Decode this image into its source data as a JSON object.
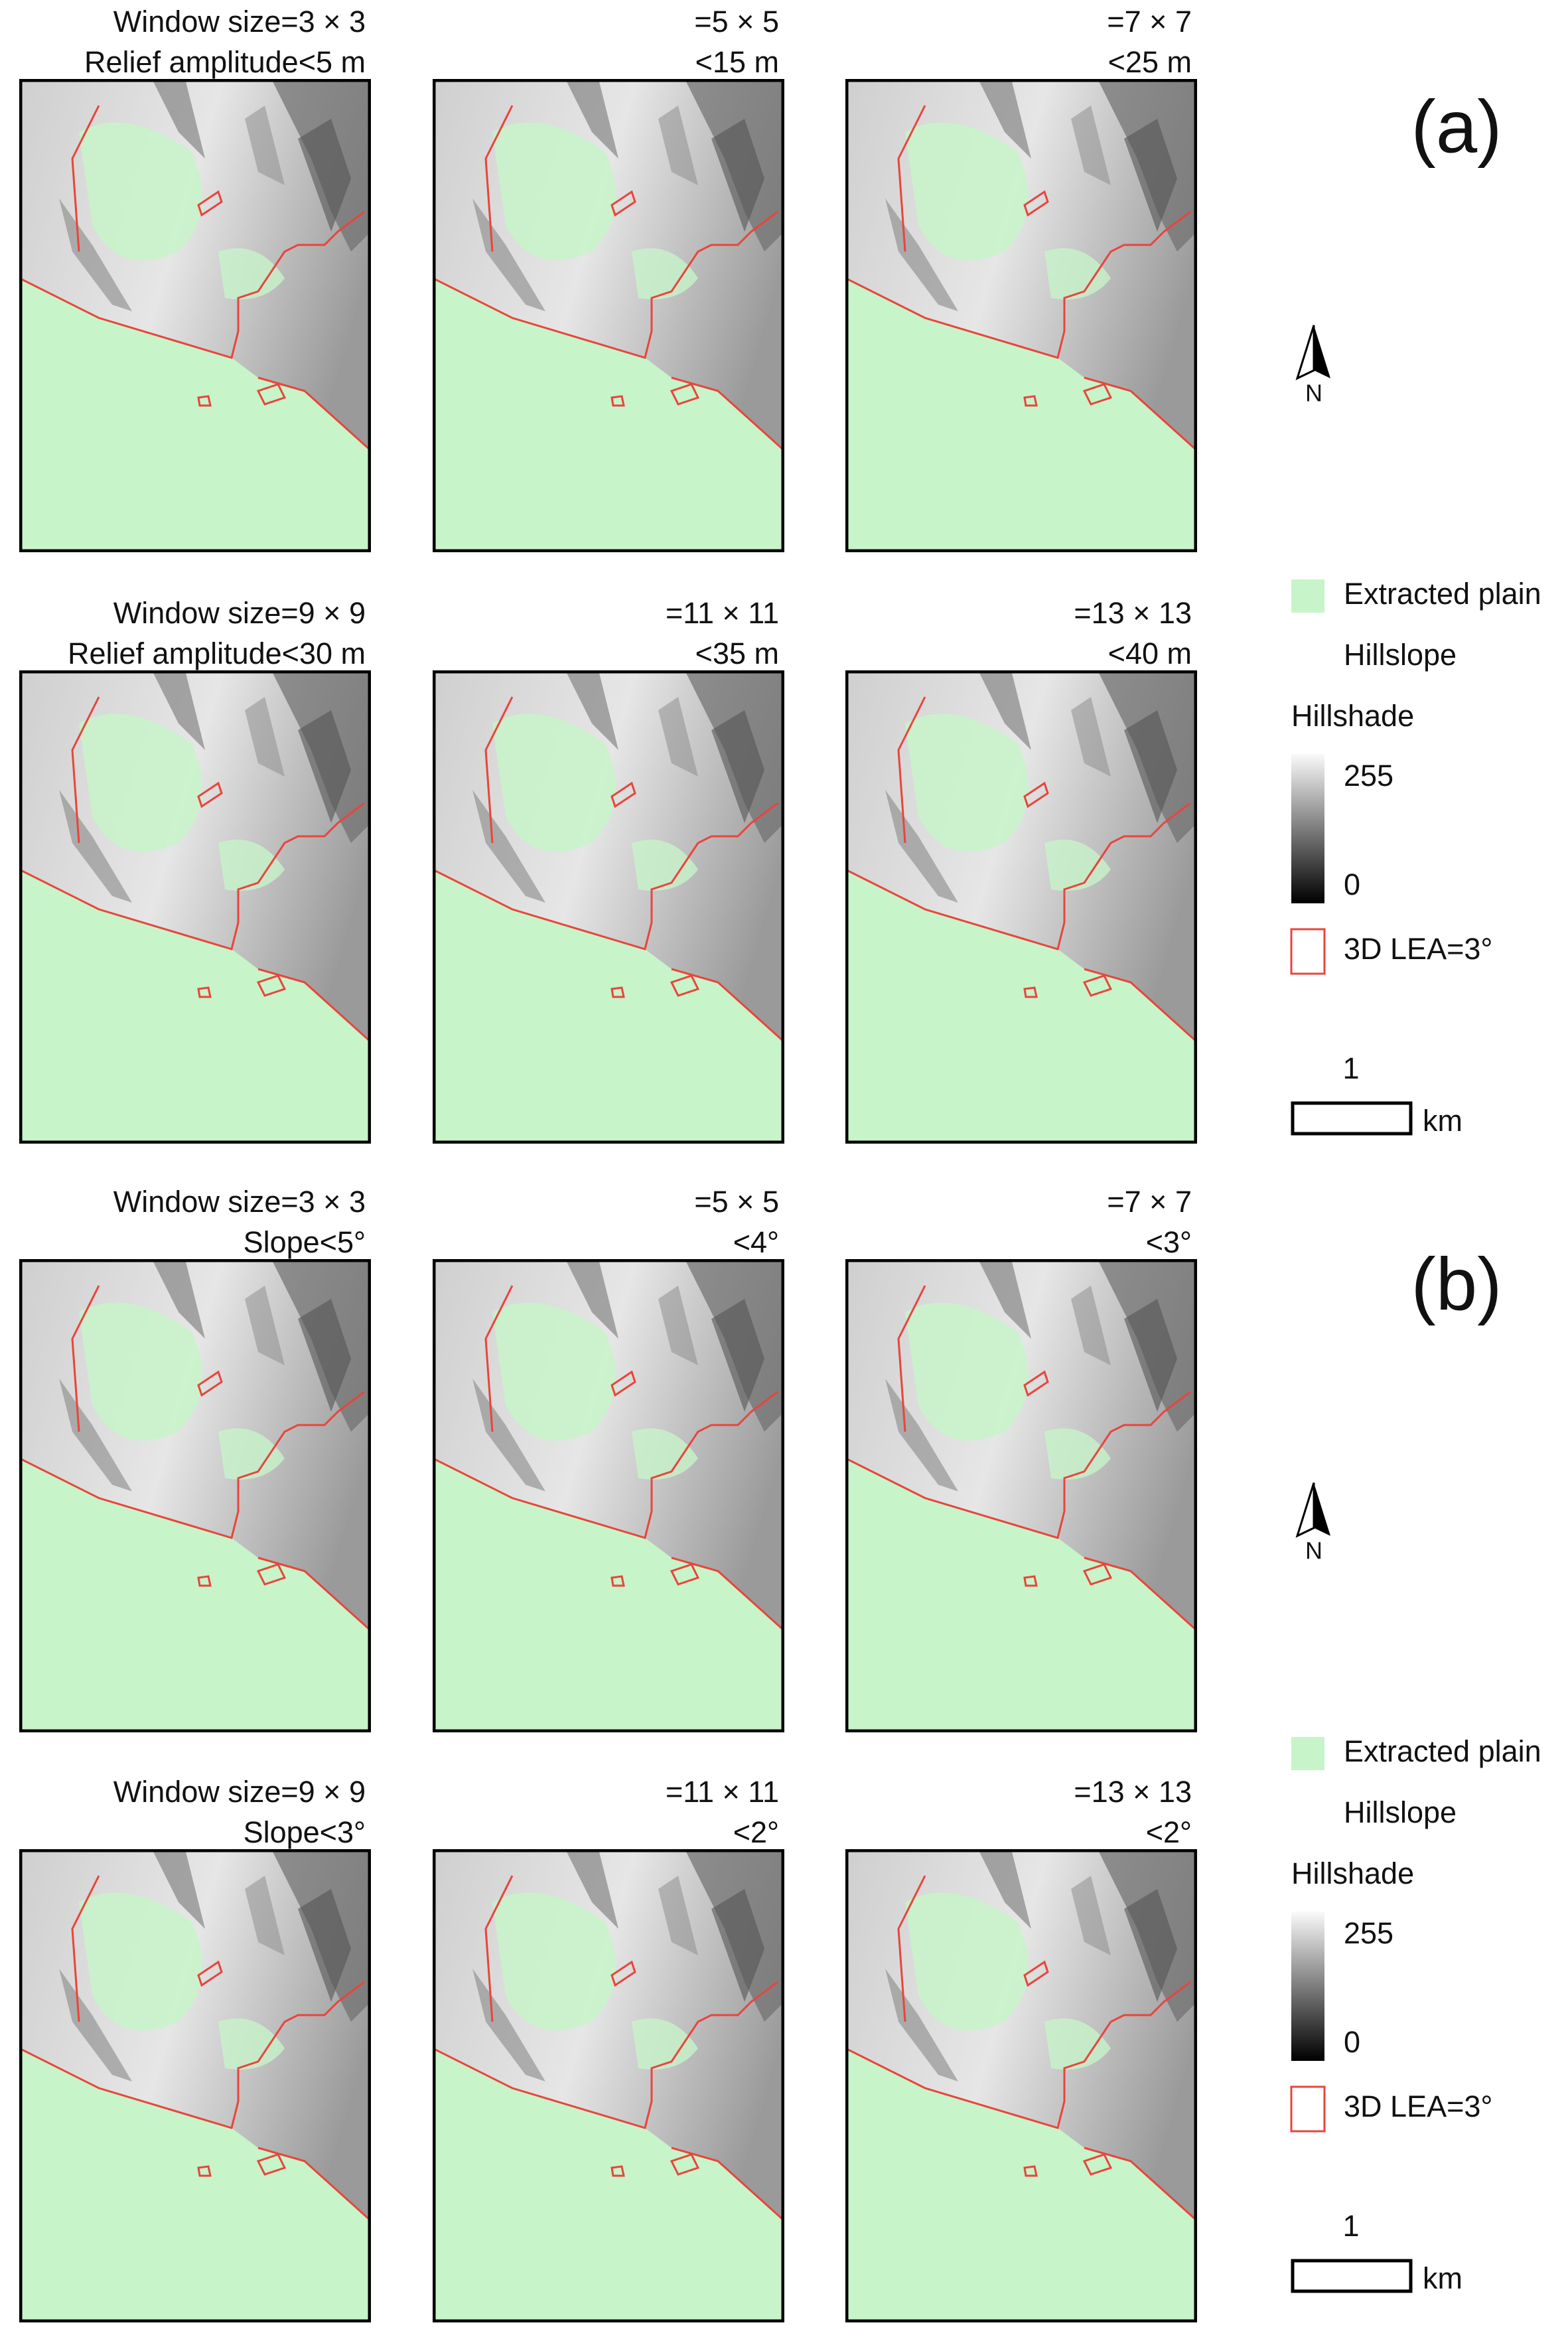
{
  "panel_groups": [
    {
      "label": "(a)",
      "rows": [
        [
          [
            "Window size=3 × 3",
            "Relief amplitude<5 m"
          ],
          [
            "=5 × 5",
            "<15 m"
          ],
          [
            "=7 × 7",
            "<25 m"
          ]
        ],
        [
          [
            "Window size=9 × 9",
            "Relief amplitude<30 m"
          ],
          [
            "=11 × 11",
            "<35 m"
          ],
          [
            "=13 × 13",
            "<40 m"
          ]
        ]
      ]
    },
    {
      "label": "(b)",
      "rows": [
        [
          [
            "Window size=3 × 3",
            "Slope<5°"
          ],
          [
            "=5 × 5",
            "<4°"
          ],
          [
            "=7 × 7",
            "<3°"
          ]
        ],
        [
          [
            "Window size=9 × 9",
            "Slope<3°"
          ],
          [
            "=11 × 11",
            "<2°"
          ],
          [
            "=13 × 13",
            "<2°"
          ]
        ]
      ]
    }
  ],
  "legend": {
    "extracted_plain": "Extracted plain",
    "hillslope": "Hillslope",
    "hillshade": "Hillshade",
    "hillshade_max": "255",
    "hillshade_min": "0",
    "boundary": "3D LEA=3°",
    "scale_value": "1",
    "scale_unit": "km",
    "north": "N"
  }
}
